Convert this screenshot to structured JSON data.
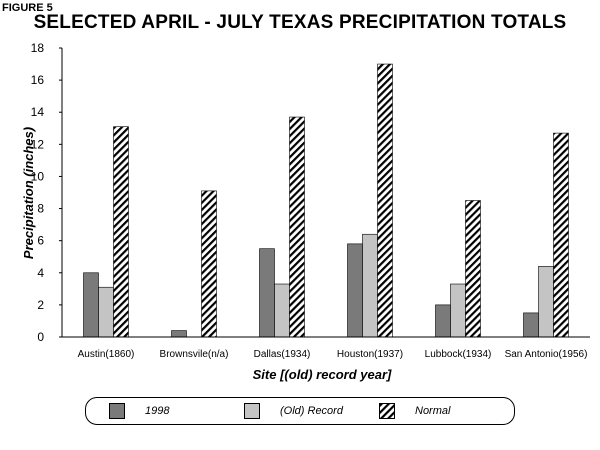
{
  "figure_label": "FIGURE 5",
  "chart_data": {
    "type": "bar",
    "title": "SELECTED APRIL - JULY TEXAS PRECIPITATION TOTALS",
    "xlabel": "Site [(old) record year]",
    "ylabel": "Precipitation (inches)",
    "ylim": [
      0,
      18
    ],
    "yticks": [
      0,
      2,
      4,
      6,
      8,
      10,
      12,
      14,
      16,
      18
    ],
    "grid": false,
    "legend_position": "bottom",
    "categories": [
      "Austin(1860)",
      "Brownsvile(n/a)",
      "Dallas(1934)",
      "Houston(1937)",
      "Lubbock(1934)",
      "San Antonio(1956)"
    ],
    "series": [
      {
        "name": "1998",
        "color": "#7a7a7a",
        "pattern": "solid",
        "values": [
          4.0,
          0.4,
          5.5,
          5.8,
          2.0,
          1.5
        ]
      },
      {
        "name": "(Old) Record",
        "color": "#c4c4c4",
        "pattern": "solid",
        "values": [
          3.1,
          null,
          3.3,
          6.4,
          3.3,
          4.4
        ]
      },
      {
        "name": "Normal",
        "color": "#000000",
        "pattern": "hatch",
        "values": [
          13.1,
          9.1,
          13.7,
          17.0,
          8.5,
          12.7
        ]
      }
    ]
  }
}
